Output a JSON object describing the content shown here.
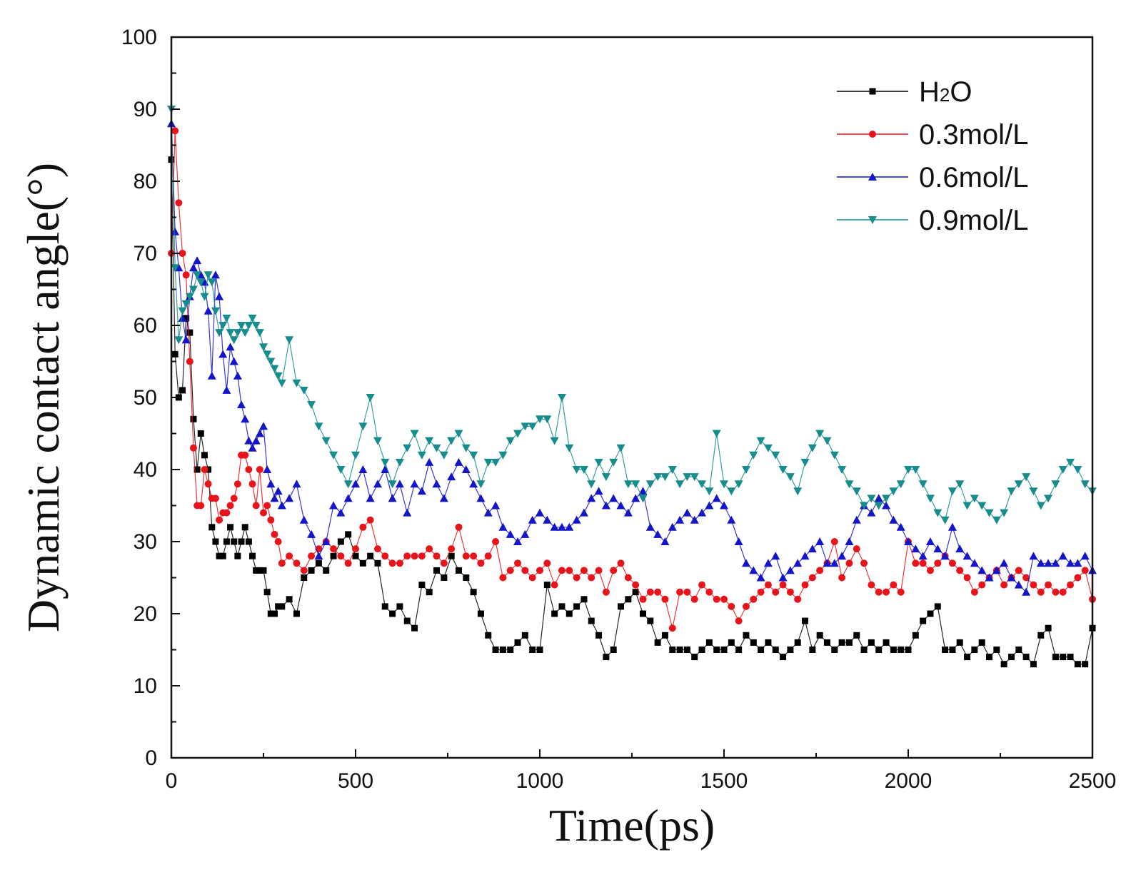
{
  "chart_data": {
    "type": "line",
    "xlabel": "Time(ps)",
    "ylabel": "Dynamic contact angle(°)",
    "xlim": [
      0,
      2500
    ],
    "ylim": [
      0,
      100
    ],
    "xticks": [
      "0",
      "500",
      "1000",
      "1500",
      "2000",
      "2500"
    ],
    "yticks": [
      "0",
      "10",
      "20",
      "30",
      "40",
      "50",
      "60",
      "70",
      "80",
      "90",
      "100"
    ],
    "grid": false,
    "legend_position": "top-right",
    "series": [
      {
        "name": "H2O",
        "legend": {
          "base": "H",
          "sub": "2",
          "rest": "O"
        },
        "color": "#000000",
        "marker": "square",
        "x": [
          0,
          10,
          20,
          30,
          40,
          50,
          60,
          70,
          80,
          90,
          100,
          110,
          120,
          130,
          140,
          150,
          160,
          170,
          180,
          190,
          200,
          210,
          220,
          230,
          240,
          250,
          260,
          270,
          280,
          290,
          300,
          320,
          340,
          360,
          380,
          400,
          420,
          440,
          460,
          480,
          500,
          520,
          540,
          560,
          580,
          600,
          620,
          640,
          660,
          680,
          700,
          720,
          740,
          760,
          780,
          800,
          820,
          840,
          860,
          880,
          900,
          920,
          940,
          960,
          980,
          1000,
          1020,
          1040,
          1060,
          1080,
          1100,
          1120,
          1140,
          1160,
          1180,
          1200,
          1220,
          1240,
          1260,
          1280,
          1300,
          1320,
          1340,
          1360,
          1380,
          1400,
          1420,
          1440,
          1460,
          1480,
          1500,
          1520,
          1540,
          1560,
          1580,
          1600,
          1620,
          1640,
          1660,
          1680,
          1700,
          1720,
          1740,
          1760,
          1780,
          1800,
          1820,
          1840,
          1860,
          1880,
          1900,
          1920,
          1940,
          1960,
          1980,
          2000,
          2020,
          2040,
          2060,
          2080,
          2100,
          2120,
          2140,
          2160,
          2180,
          2200,
          2220,
          2240,
          2260,
          2280,
          2300,
          2320,
          2340,
          2360,
          2380,
          2400,
          2420,
          2440,
          2460,
          2480,
          2500
        ],
        "y": [
          83,
          56,
          50,
          51,
          61,
          59,
          47,
          40,
          45,
          42,
          40,
          32,
          30,
          28,
          28,
          30,
          32,
          30,
          28,
          30,
          32,
          30,
          28,
          26,
          26,
          26,
          23,
          20,
          20,
          21,
          21,
          22,
          20,
          25,
          26,
          27,
          26,
          28,
          30,
          31,
          28,
          27,
          28,
          27,
          21,
          20,
          21,
          19,
          18,
          24,
          23,
          26,
          25,
          28,
          26,
          25,
          23,
          20,
          17,
          15,
          15,
          15,
          16,
          17,
          15,
          15,
          24,
          20,
          21,
          20,
          21,
          22,
          19,
          17,
          14,
          15,
          21,
          22,
          23,
          20,
          19,
          16,
          17,
          15,
          15,
          15,
          14,
          15,
          16,
          15,
          15,
          16,
          15,
          17,
          16,
          15,
          16,
          15,
          14,
          15,
          16,
          19,
          15,
          17,
          16,
          15,
          16,
          16,
          17,
          15,
          16,
          15,
          16,
          15,
          15,
          15,
          17,
          19,
          20,
          21,
          15,
          15,
          16,
          14,
          15,
          16,
          14,
          15,
          13,
          14,
          15,
          14,
          13,
          17,
          18,
          14,
          14,
          14,
          13,
          13,
          18
        ]
      },
      {
        "name": "0.3mol/L",
        "color": "#e8141c",
        "marker": "circle",
        "x": [
          0,
          10,
          20,
          30,
          40,
          50,
          60,
          70,
          80,
          90,
          100,
          110,
          120,
          130,
          140,
          150,
          160,
          170,
          180,
          190,
          200,
          210,
          220,
          230,
          240,
          250,
          260,
          270,
          280,
          290,
          300,
          320,
          340,
          360,
          380,
          400,
          420,
          440,
          460,
          480,
          500,
          520,
          540,
          560,
          580,
          600,
          620,
          640,
          660,
          680,
          700,
          720,
          740,
          760,
          780,
          800,
          820,
          840,
          860,
          880,
          900,
          920,
          940,
          960,
          980,
          1000,
          1020,
          1040,
          1060,
          1080,
          1100,
          1120,
          1140,
          1160,
          1180,
          1200,
          1220,
          1240,
          1260,
          1280,
          1300,
          1320,
          1340,
          1360,
          1380,
          1400,
          1420,
          1440,
          1460,
          1480,
          1500,
          1520,
          1540,
          1560,
          1580,
          1600,
          1620,
          1640,
          1660,
          1680,
          1700,
          1720,
          1740,
          1760,
          1780,
          1800,
          1820,
          1840,
          1860,
          1880,
          1900,
          1920,
          1940,
          1960,
          1980,
          2000,
          2020,
          2040,
          2060,
          2080,
          2100,
          2120,
          2140,
          2160,
          2180,
          2200,
          2220,
          2240,
          2260,
          2280,
          2300,
          2320,
          2340,
          2360,
          2380,
          2400,
          2420,
          2440,
          2460,
          2480,
          2500
        ],
        "y": [
          70,
          87,
          77,
          70,
          67,
          55,
          43,
          35,
          35,
          40,
          38,
          36,
          36,
          33,
          34,
          34,
          35,
          36,
          38,
          42,
          42,
          40,
          38,
          35,
          40,
          34,
          35,
          33,
          31,
          30,
          27,
          28,
          27,
          26,
          28,
          29,
          30,
          29,
          28,
          27,
          29,
          32,
          33,
          29,
          28,
          27,
          27,
          28,
          28,
          28,
          29,
          28,
          27,
          29,
          32,
          28,
          28,
          27,
          28,
          30,
          25,
          26,
          27,
          26,
          25,
          26,
          27,
          24,
          26,
          26,
          25,
          26,
          25,
          26,
          23,
          26,
          27,
          25,
          24,
          22,
          23,
          23,
          22,
          18,
          23,
          23,
          22,
          24,
          23,
          22,
          22,
          21,
          19,
          21,
          22,
          23,
          24,
          23,
          24,
          23,
          22,
          24,
          25,
          26,
          27,
          30,
          25,
          27,
          29,
          27,
          24,
          23,
          23,
          24,
          23,
          30,
          27,
          27,
          26,
          27,
          28,
          27,
          26,
          25,
          23,
          24,
          25,
          26,
          24,
          25,
          26,
          25,
          24,
          23,
          24,
          23,
          23,
          24,
          25,
          26,
          22
        ]
      },
      {
        "name": "0.6mol/L",
        "color": "#1414c8",
        "marker": "triangle-up",
        "x": [
          0,
          10,
          20,
          30,
          40,
          50,
          60,
          70,
          80,
          90,
          100,
          110,
          120,
          130,
          140,
          150,
          160,
          170,
          180,
          190,
          200,
          210,
          220,
          230,
          240,
          250,
          260,
          270,
          280,
          290,
          300,
          320,
          340,
          360,
          380,
          400,
          420,
          440,
          460,
          480,
          500,
          520,
          540,
          560,
          580,
          600,
          620,
          640,
          660,
          680,
          700,
          720,
          740,
          760,
          780,
          800,
          820,
          840,
          860,
          880,
          900,
          920,
          940,
          960,
          980,
          1000,
          1020,
          1040,
          1060,
          1080,
          1100,
          1120,
          1140,
          1160,
          1180,
          1200,
          1220,
          1240,
          1260,
          1280,
          1300,
          1320,
          1340,
          1360,
          1380,
          1400,
          1420,
          1440,
          1460,
          1480,
          1500,
          1520,
          1540,
          1560,
          1580,
          1600,
          1620,
          1640,
          1660,
          1680,
          1700,
          1720,
          1740,
          1760,
          1780,
          1800,
          1820,
          1840,
          1860,
          1880,
          1900,
          1920,
          1940,
          1960,
          1980,
          2000,
          2020,
          2040,
          2060,
          2080,
          2100,
          2120,
          2140,
          2160,
          2180,
          2200,
          2220,
          2240,
          2260,
          2280,
          2300,
          2320,
          2340,
          2360,
          2380,
          2400,
          2420,
          2440,
          2460,
          2480,
          2500
        ],
        "y": [
          88,
          73,
          68,
          61,
          58,
          64,
          68,
          69,
          67,
          66,
          62,
          53,
          67,
          64,
          56,
          51,
          57,
          55,
          53,
          49,
          47,
          44,
          43,
          44,
          45,
          46,
          40,
          38,
          36,
          37,
          35,
          36,
          38,
          33,
          31,
          28,
          30,
          35,
          34,
          36,
          38,
          40,
          36,
          38,
          40,
          36,
          38,
          34,
          38,
          37,
          41,
          38,
          36,
          39,
          41,
          40,
          38,
          36,
          34,
          35,
          32,
          31,
          30,
          31,
          33,
          34,
          33,
          32,
          32,
          32,
          33,
          34,
          36,
          37,
          35,
          36,
          35,
          34,
          36,
          37,
          32,
          31,
          30,
          32,
          33,
          34,
          33,
          34,
          35,
          36,
          35,
          33,
          30,
          27,
          26,
          25,
          27,
          28,
          25,
          26,
          27,
          28,
          29,
          30,
          27,
          27,
          28,
          30,
          33,
          35,
          34,
          36,
          35,
          33,
          32,
          30,
          29,
          28,
          30,
          29,
          28,
          32,
          29,
          28,
          27,
          26,
          25,
          26,
          27,
          25,
          24,
          23,
          28,
          27,
          27,
          27,
          28,
          27,
          27,
          28,
          26
        ]
      },
      {
        "name": "0.9mol/L",
        "color": "#168c8c",
        "marker": "triangle-down",
        "x": [
          0,
          10,
          20,
          30,
          40,
          50,
          60,
          70,
          80,
          90,
          100,
          110,
          120,
          130,
          140,
          150,
          160,
          170,
          180,
          190,
          200,
          210,
          220,
          230,
          240,
          250,
          260,
          270,
          280,
          290,
          300,
          320,
          340,
          360,
          380,
          400,
          420,
          440,
          460,
          480,
          500,
          520,
          540,
          560,
          580,
          600,
          620,
          640,
          660,
          680,
          700,
          720,
          740,
          760,
          780,
          800,
          820,
          840,
          860,
          880,
          900,
          920,
          940,
          960,
          980,
          1000,
          1020,
          1040,
          1060,
          1080,
          1100,
          1120,
          1140,
          1160,
          1180,
          1200,
          1220,
          1240,
          1260,
          1280,
          1300,
          1320,
          1340,
          1360,
          1380,
          1400,
          1420,
          1440,
          1460,
          1480,
          1500,
          1520,
          1540,
          1560,
          1580,
          1600,
          1620,
          1640,
          1660,
          1680,
          1700,
          1720,
          1740,
          1760,
          1780,
          1800,
          1820,
          1840,
          1860,
          1880,
          1900,
          1920,
          1940,
          1960,
          1980,
          2000,
          2020,
          2040,
          2060,
          2080,
          2100,
          2120,
          2140,
          2160,
          2180,
          2200,
          2220,
          2240,
          2260,
          2280,
          2300,
          2320,
          2340,
          2360,
          2380,
          2400,
          2420,
          2440,
          2460,
          2480,
          2500
        ],
        "y": [
          90,
          68,
          58,
          62,
          63,
          64,
          65,
          67,
          66,
          64,
          67,
          66,
          62,
          59,
          60,
          61,
          59,
          58,
          59,
          60,
          59,
          60,
          61,
          60,
          59,
          57,
          56,
          55,
          54,
          53,
          52,
          58,
          52,
          51,
          49,
          46,
          44,
          42,
          40,
          38,
          42,
          46,
          50,
          44,
          41,
          38,
          41,
          43,
          45,
          42,
          44,
          43,
          42,
          44,
          45,
          43,
          42,
          38,
          41,
          41,
          42,
          44,
          45,
          46,
          46,
          47,
          47,
          44,
          50,
          43,
          40,
          40,
          38,
          41,
          39,
          41,
          43,
          38,
          38,
          36,
          38,
          39,
          39,
          40,
          38,
          39,
          39,
          38,
          37,
          45,
          38,
          37,
          38,
          40,
          42,
          44,
          43,
          42,
          40,
          39,
          37,
          41,
          43,
          45,
          44,
          42,
          40,
          38,
          37,
          35,
          36,
          35,
          36,
          37,
          38,
          40,
          40,
          38,
          36,
          34,
          33,
          37,
          38,
          35,
          36,
          35,
          34,
          33,
          34,
          37,
          38,
          39,
          37,
          35,
          36,
          38,
          40,
          41,
          40,
          38,
          37
        ]
      }
    ]
  }
}
